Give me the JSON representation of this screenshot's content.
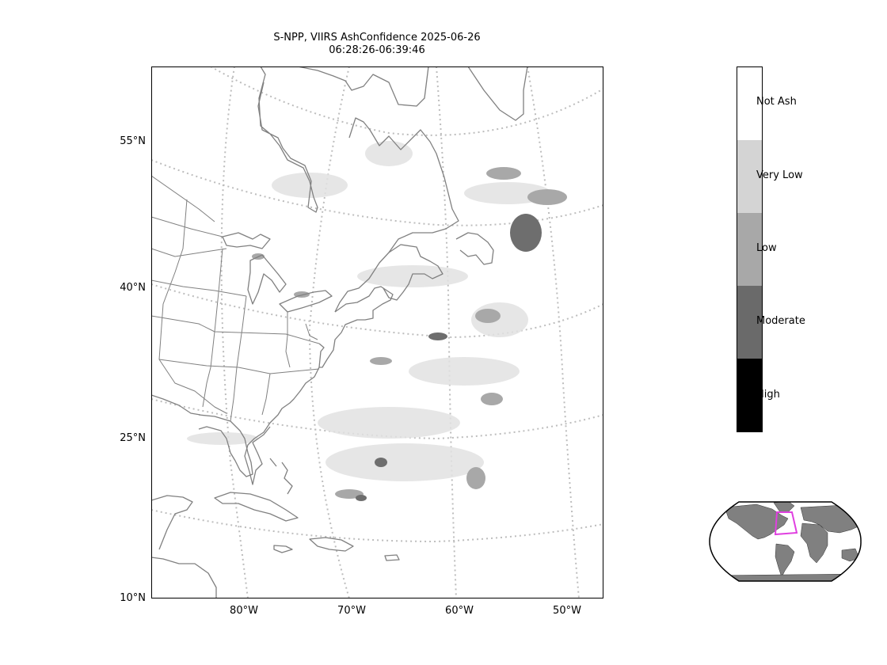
{
  "title": {
    "line1": "S-NPP, VIIRS AshConfidence 2025-06-26",
    "line2": "06:28:26-06:39:46"
  },
  "map": {
    "lat_ticks": [
      "55°N",
      "40°N",
      "25°N",
      "10°N"
    ],
    "lon_ticks": [
      "80°W",
      "70°W",
      "60°W",
      "50°W"
    ],
    "land_outline_color": "#808080",
    "graticule_color": "#bdbdbd"
  },
  "colorbar": {
    "categories": [
      {
        "label": "Not Ash",
        "color": "#ffffff"
      },
      {
        "label": "Very Low",
        "color": "#d4d4d4"
      },
      {
        "label": "Low",
        "color": "#a8a8a8"
      },
      {
        "label": "Moderate",
        "color": "#6a6a6a"
      },
      {
        "label": "High",
        "color": "#000000"
      }
    ]
  },
  "inset": {
    "land_color": "#808080",
    "highlight_color": "#e040e0"
  }
}
